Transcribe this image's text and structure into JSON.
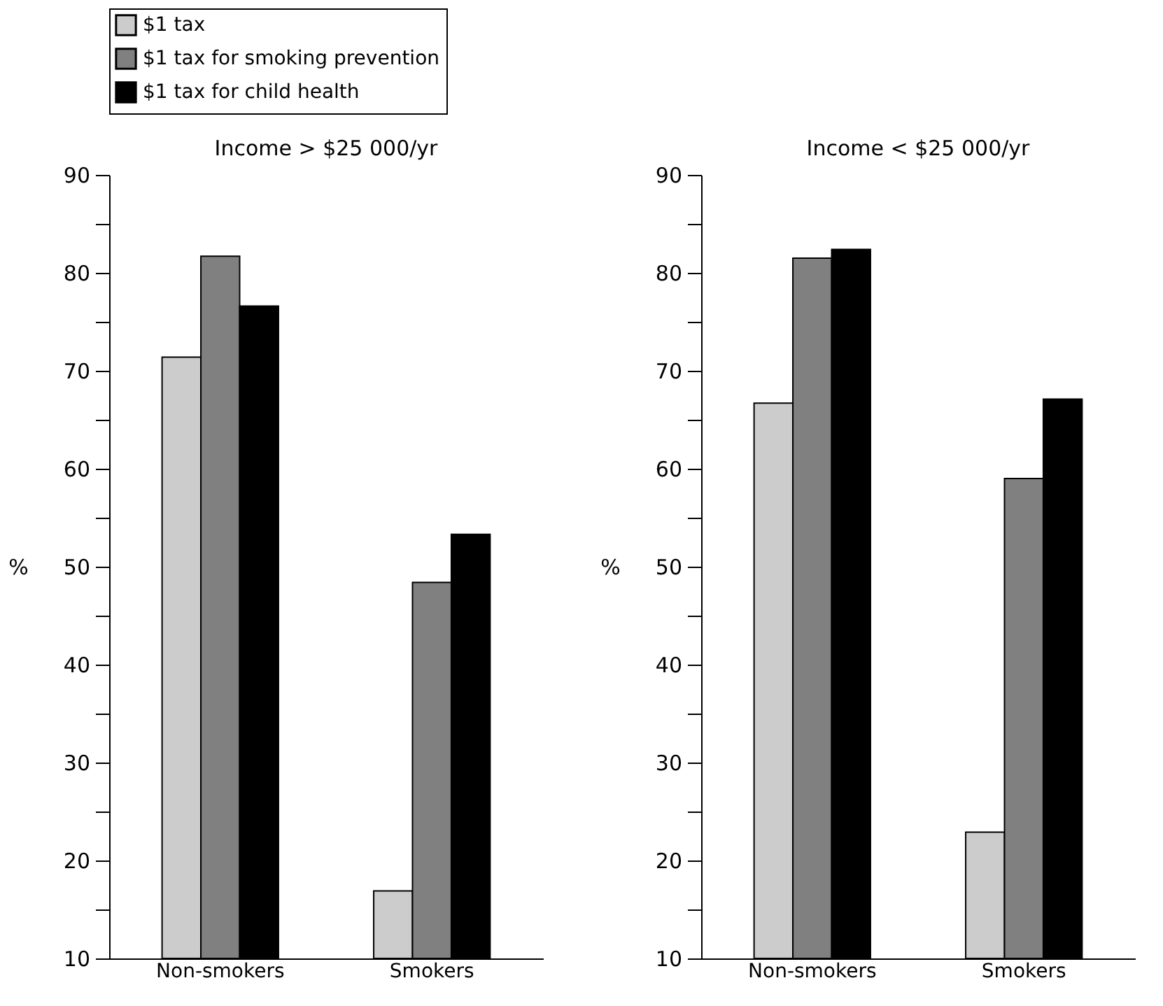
{
  "chart_data": [
    {
      "type": "bar",
      "title": "Income > $25 000/yr",
      "ylabel": "%",
      "categories": [
        "Non-smokers",
        "Smokers"
      ],
      "series": [
        {
          "name": "$1 tax",
          "color": "#cccccc",
          "values": [
            71.4,
            16.9
          ]
        },
        {
          "name": "$1 tax for smoking prevention",
          "color": "#808080",
          "values": [
            81.7,
            48.4
          ]
        },
        {
          "name": "$1 tax for child health",
          "color": "#000000",
          "values": [
            76.6,
            53.3
          ]
        }
      ],
      "ylim": [
        10,
        90
      ],
      "yticks": [
        10,
        {
          "value": 15,
          "label": null
        },
        20,
        {
          "value": 25,
          "label": null
        },
        30,
        {
          "value": 35,
          "label": null
        },
        40,
        {
          "value": 45,
          "label": null
        },
        50,
        {
          "value": 55,
          "label": null
        },
        60,
        {
          "value": 65,
          "label": null
        },
        70,
        {
          "value": 75,
          "label": null
        },
        80,
        {
          "value": 85,
          "label": null
        },
        90
      ],
      "legend": "top",
      "grid": false
    },
    {
      "type": "bar",
      "title": "Income < $25 000/yr",
      "ylabel": "%",
      "categories": [
        "Non-smokers",
        "Smokers"
      ],
      "series": [
        {
          "name": "$1 tax",
          "color": "#cccccc",
          "values": [
            66.7,
            22.9
          ]
        },
        {
          "name": "$1 tax for smoking prevention",
          "color": "#808080",
          "values": [
            81.5,
            59.0
          ]
        },
        {
          "name": "$1 tax for child health",
          "color": "#000000",
          "values": [
            82.4,
            67.1
          ]
        }
      ],
      "ylim": [
        10,
        90
      ],
      "yticks": [
        10,
        {
          "value": 15,
          "label": null
        },
        20,
        {
          "value": 25,
          "label": null
        },
        30,
        {
          "value": 35,
          "label": null
        },
        40,
        {
          "value": 45,
          "label": null
        },
        50,
        {
          "value": 55,
          "label": null
        },
        60,
        {
          "value": 65,
          "label": null
        },
        70,
        {
          "value": 75,
          "label": null
        },
        80,
        {
          "value": 85,
          "label": null
        },
        90
      ],
      "legend": "top",
      "grid": false
    }
  ]
}
